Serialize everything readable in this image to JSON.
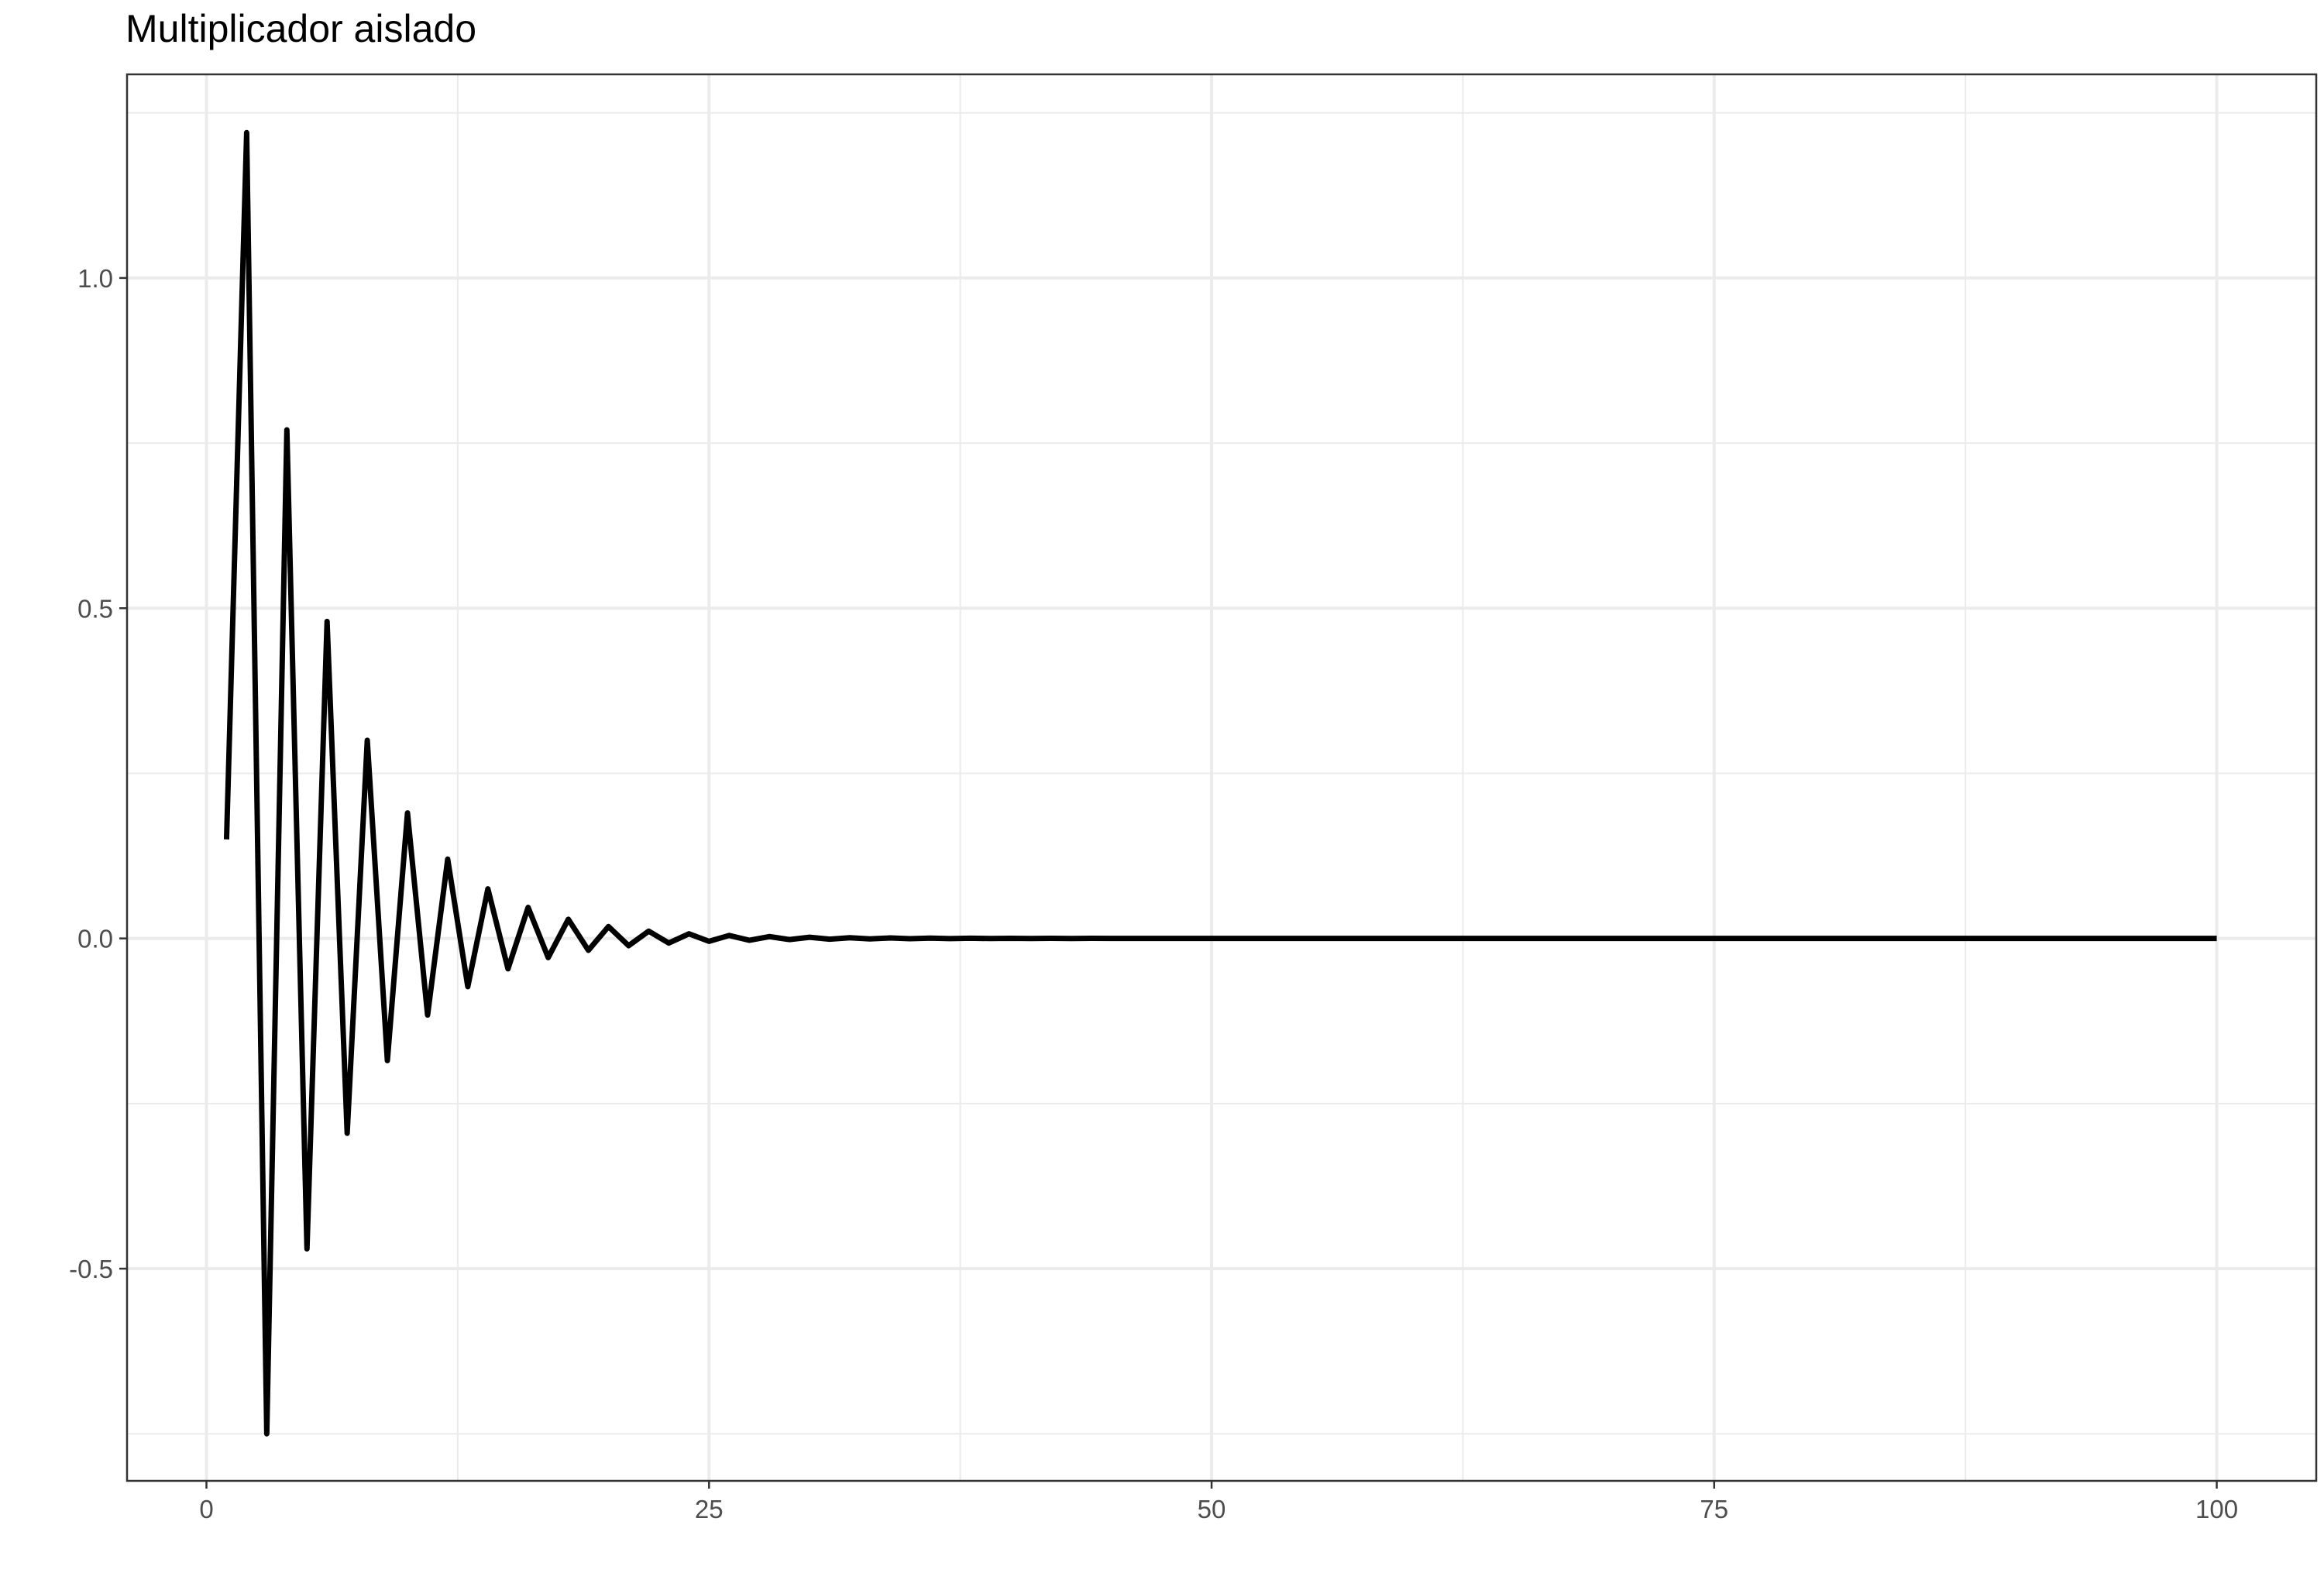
{
  "chart_data": {
    "type": "line",
    "title": "Multiplicador aislado",
    "xlabel": "",
    "ylabel": "",
    "xlim": [
      -3.95,
      104.95
    ],
    "ylim": [
      -0.8213,
      1.3083
    ],
    "x_ticks": [
      0,
      25,
      50,
      75,
      100
    ],
    "x_tick_labels": [
      "0",
      "25",
      "50",
      "75",
      "100"
    ],
    "y_ticks": [
      -0.5,
      0.0,
      0.5,
      1.0
    ],
    "y_tick_labels": [
      "-0.5",
      "0.0",
      "0.5",
      "1.0"
    ],
    "grid": true,
    "legend": "none",
    "line_color": "#000000",
    "series": [
      {
        "x": [
          1,
          2,
          3,
          4,
          5,
          6,
          7,
          8,
          9,
          10,
          11,
          12,
          13,
          14,
          15,
          16,
          17,
          18,
          19,
          20,
          21,
          22,
          23,
          24,
          25,
          26,
          27,
          28,
          29,
          30,
          31,
          32,
          33,
          34,
          35,
          36,
          37,
          38,
          39,
          40,
          41,
          42,
          43,
          44,
          45,
          46,
          47,
          48,
          49,
          50,
          51,
          52,
          53,
          54,
          55,
          56,
          57,
          58,
          59,
          60,
          61,
          62,
          63,
          64,
          65,
          66,
          67,
          68,
          69,
          70,
          71,
          72,
          73,
          74,
          75,
          76,
          77,
          78,
          79,
          80,
          81,
          82,
          83,
          84,
          85,
          86,
          87,
          88,
          89,
          90,
          91,
          92,
          93,
          94,
          95,
          96,
          97,
          98,
          99,
          100
        ],
        "values": [
          0.15,
          1.22,
          -0.75,
          0.77,
          -0.47,
          0.48,
          -0.295,
          0.3,
          -0.185,
          0.19,
          -0.116,
          0.12,
          -0.073,
          0.075,
          -0.046,
          0.047,
          -0.029,
          0.029,
          -0.018,
          0.018,
          -0.011,
          0.011,
          -0.007,
          0.007,
          -0.0044,
          0.0045,
          -0.0028,
          0.0028,
          -0.0017,
          0.0018,
          -0.0011,
          0.0011,
          -0.0007,
          0.0007,
          -0.0004,
          0.0004,
          -0.0003,
          0.0003,
          -0.0002,
          0.0002,
          -0.0001,
          0.0001,
          -0.0001,
          0.0001,
          0,
          0,
          0,
          0,
          0,
          0,
          0,
          0,
          0,
          0,
          0,
          0,
          0,
          0,
          0,
          0,
          0,
          0,
          0,
          0,
          0,
          0,
          0,
          0,
          0,
          0,
          0,
          0,
          0,
          0,
          0,
          0,
          0,
          0,
          0,
          0,
          0,
          0,
          0,
          0,
          0,
          0,
          0,
          0,
          0,
          0,
          0,
          0,
          0,
          0,
          0,
          0,
          0,
          0,
          0,
          0
        ]
      }
    ]
  }
}
